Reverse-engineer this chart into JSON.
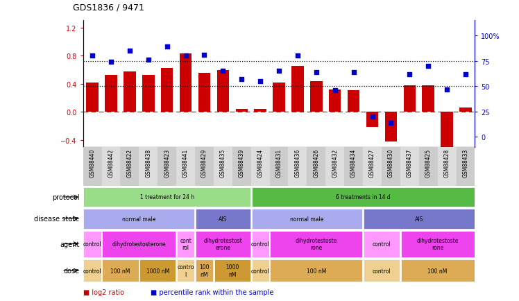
{
  "title": "GDS1836 / 9471",
  "samples": [
    "GSM88440",
    "GSM88442",
    "GSM88422",
    "GSM88438",
    "GSM88423",
    "GSM88441",
    "GSM88429",
    "GSM88435",
    "GSM88439",
    "GSM88424",
    "GSM88431",
    "GSM88436",
    "GSM88426",
    "GSM88432",
    "GSM88434",
    "GSM88427",
    "GSM88430",
    "GSM88437",
    "GSM88425",
    "GSM88428",
    "GSM88433"
  ],
  "log2_ratio": [
    0.42,
    0.52,
    0.57,
    0.52,
    0.62,
    0.83,
    0.55,
    0.59,
    0.04,
    0.04,
    0.42,
    0.65,
    0.44,
    0.32,
    0.31,
    -0.22,
    -0.42,
    0.38,
    0.38,
    -0.53,
    0.06
  ],
  "percentile": [
    80,
    74,
    85,
    76,
    89,
    80,
    81,
    65,
    57,
    55,
    65,
    80,
    64,
    46,
    64,
    20,
    14,
    62,
    70,
    47,
    62
  ],
  "bar_color": "#cc0000",
  "dot_color": "#0000cc",
  "ylim_left": [
    -0.5,
    1.3
  ],
  "ylim_right": [
    -10,
    115
  ],
  "yticks_left": [
    -0.4,
    0.0,
    0.4,
    0.8,
    1.2
  ],
  "yticks_right": [
    0,
    25,
    50,
    75,
    100
  ],
  "protocol_segments": [
    {
      "text": "1 treatment for 24 h",
      "start": 0,
      "end": 9,
      "color": "#99dd88"
    },
    {
      "text": "6 treatments in 14 d",
      "start": 9,
      "end": 21,
      "color": "#55bb44"
    }
  ],
  "disease_state_segments": [
    {
      "text": "normal male",
      "start": 0,
      "end": 6,
      "color": "#aaaaee"
    },
    {
      "text": "AIS",
      "start": 6,
      "end": 9,
      "color": "#7777cc"
    },
    {
      "text": "normal male",
      "start": 9,
      "end": 15,
      "color": "#aaaaee"
    },
    {
      "text": "AIS",
      "start": 15,
      "end": 21,
      "color": "#7777cc"
    }
  ],
  "agent_segments": [
    {
      "text": "control",
      "start": 0,
      "end": 1,
      "color": "#ff99ff"
    },
    {
      "text": "dihydrotestosterone",
      "start": 1,
      "end": 5,
      "color": "#ee44ee"
    },
    {
      "text": "cont\nrol",
      "start": 5,
      "end": 6,
      "color": "#ff99ff"
    },
    {
      "text": "dihydrotestost\nerone",
      "start": 6,
      "end": 9,
      "color": "#ee44ee"
    },
    {
      "text": "control",
      "start": 9,
      "end": 10,
      "color": "#ff99ff"
    },
    {
      "text": "dihydrotestoste\nrone",
      "start": 10,
      "end": 15,
      "color": "#ee44ee"
    },
    {
      "text": "control",
      "start": 15,
      "end": 17,
      "color": "#ff99ff"
    },
    {
      "text": "dihydrotestoste\nrone",
      "start": 17,
      "end": 21,
      "color": "#ee44ee"
    }
  ],
  "dose_segments": [
    {
      "text": "control",
      "start": 0,
      "end": 1,
      "color": "#f0d090"
    },
    {
      "text": "100 nM",
      "start": 1,
      "end": 3,
      "color": "#ddaa55"
    },
    {
      "text": "1000 nM",
      "start": 3,
      "end": 5,
      "color": "#cc9933"
    },
    {
      "text": "contro\nl",
      "start": 5,
      "end": 6,
      "color": "#f0d090"
    },
    {
      "text": "100\nnM",
      "start": 6,
      "end": 7,
      "color": "#ddaa55"
    },
    {
      "text": "1000\nnM",
      "start": 7,
      "end": 9,
      "color": "#cc9933"
    },
    {
      "text": "control",
      "start": 9,
      "end": 10,
      "color": "#f0d090"
    },
    {
      "text": "100 nM",
      "start": 10,
      "end": 15,
      "color": "#ddaa55"
    },
    {
      "text": "control",
      "start": 15,
      "end": 17,
      "color": "#f0d090"
    },
    {
      "text": "100 nM",
      "start": 17,
      "end": 21,
      "color": "#ddaa55"
    }
  ],
  "row_labels": [
    "protocol",
    "disease state",
    "agent",
    "dose"
  ],
  "legend_bar": "log2 ratio",
  "legend_dot": "percentile rank within the sample"
}
